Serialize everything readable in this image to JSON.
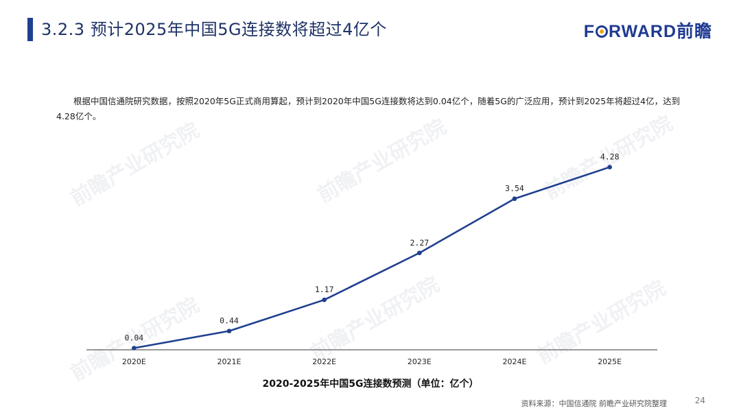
{
  "header": {
    "title": "3.2.3 预计2025年中国5G连接数将超过4亿个",
    "logo_prefix": "F",
    "logo_suffix": "RWARD前瞻"
  },
  "intro_text": "根据中国信通院研究数据，按照2020年5G正式商用算起，预计到2020年中国5G连接数将达到0.04亿个，随着5G的广泛应用，预计到2025年将超过4亿，达到4.28亿个。",
  "watermark_text": "前瞻产业研究院",
  "chart_data": {
    "type": "line",
    "title": "2020-2025年中国5G连接数预测（单位：亿个）",
    "categories": [
      "2020E",
      "2021E",
      "2022E",
      "2023E",
      "2024E",
      "2025E"
    ],
    "series": [
      {
        "values": [
          0.04,
          0.44,
          1.17,
          2.27,
          3.54,
          4.28
        ]
      }
    ],
    "data_labels": [
      "0.04",
      "0.44",
      "1.17",
      "2.27",
      "3.54",
      "4.28"
    ],
    "ylim": [
      0,
      4.5
    ],
    "grid": false,
    "line_color": "#1f3f8f"
  },
  "footer": {
    "source": "资料来源：中国信通院 前瞻产业研究院整理",
    "page_number": "24"
  }
}
